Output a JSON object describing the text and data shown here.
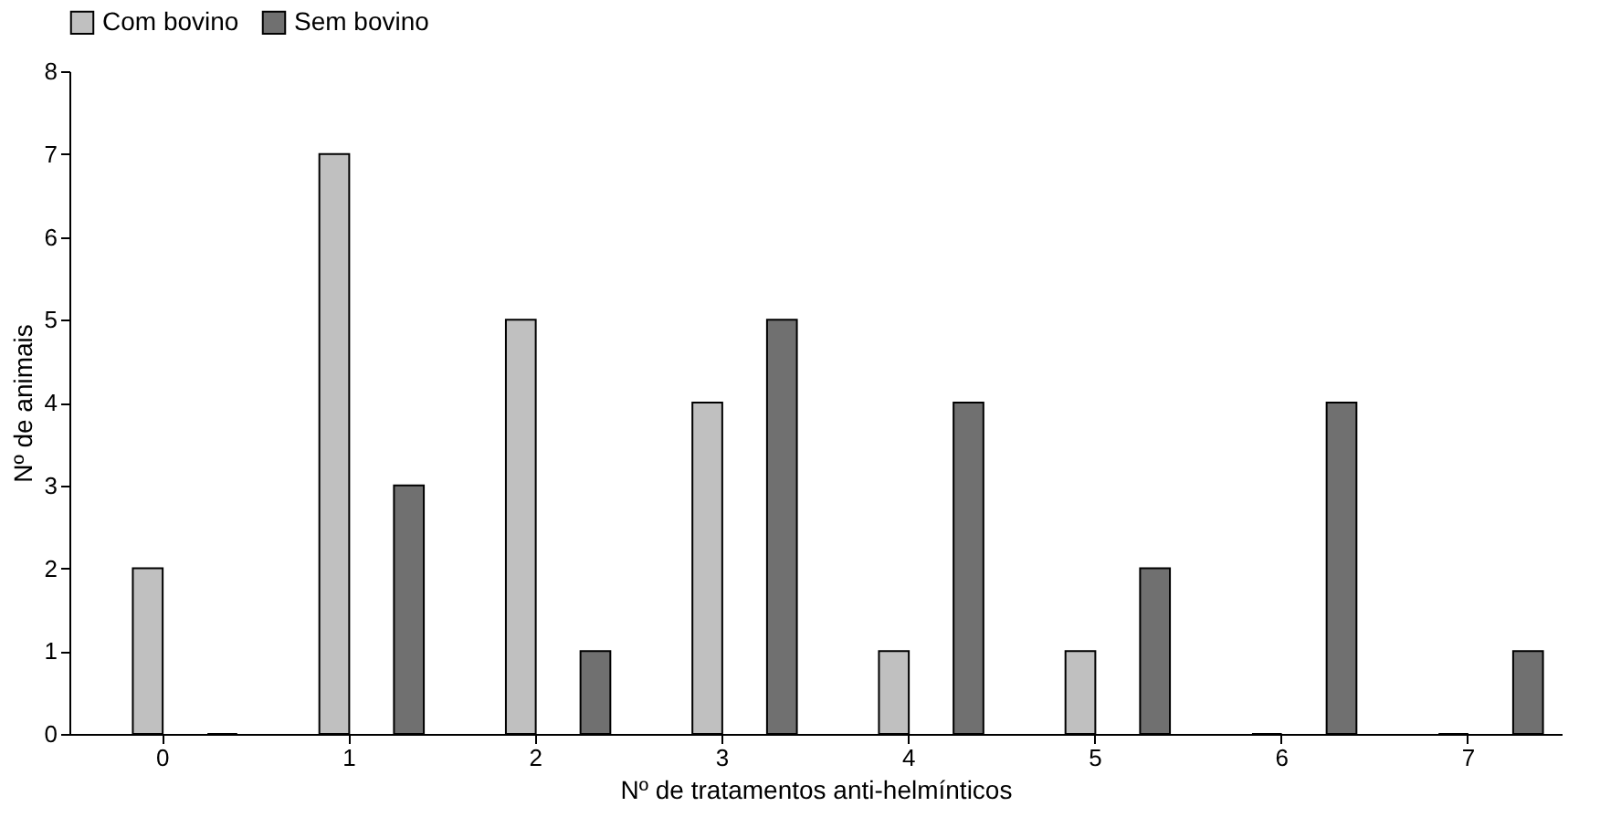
{
  "chart_data": {
    "type": "bar",
    "xlabel": "Nº  de tratamentos anti-helmínticos",
    "ylabel": "Nº de animais",
    "categories": [
      "0",
      "1",
      "2",
      "3",
      "4",
      "5",
      "6",
      "7"
    ],
    "series": [
      {
        "name": "Com bovino",
        "color": "#c0c0c0",
        "values": [
          2,
          7,
          5,
          4,
          1,
          1,
          0,
          0
        ]
      },
      {
        "name": "Sem bovino",
        "color": "#707070",
        "values": [
          0,
          3,
          1,
          5,
          4,
          2,
          4,
          1
        ]
      }
    ],
    "ylim": [
      0,
      8
    ],
    "yticks": [
      0,
      1,
      2,
      3,
      4,
      5,
      6,
      7,
      8
    ],
    "grid": false,
    "legend": "top"
  }
}
